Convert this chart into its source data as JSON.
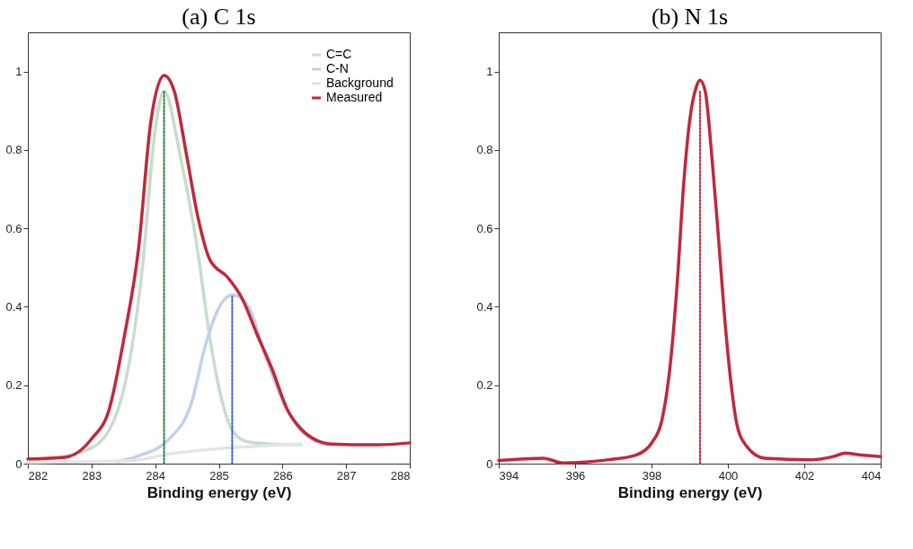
{
  "chart_data": [
    {
      "type": "line",
      "title": "(a) C 1s",
      "xlabel": "Binding energy (eV)",
      "xlim": [
        282,
        288
      ],
      "xticks": [
        282,
        283,
        284,
        285,
        286,
        287,
        288
      ],
      "ylim": [
        0,
        1.1
      ],
      "yticks": [
        0,
        0.2,
        0.4,
        0.6,
        0.8,
        1
      ],
      "grid": false,
      "legend": "top right",
      "series": [
        {
          "name": "C=C",
          "color": "#c8dccb",
          "x": [
            282,
            283,
            283.4,
            283.8,
            284.0,
            284.14,
            284.4,
            284.67,
            284.86,
            285.05,
            285.23,
            285.47,
            285.84,
            286.3
          ],
          "values": [
            0.005,
            0.04,
            0.13,
            0.5,
            0.85,
            0.95,
            0.78,
            0.54,
            0.32,
            0.16,
            0.08,
            0.055,
            0.05,
            0.048
          ]
        },
        {
          "name": "C-N",
          "color": "#c0d0f0",
          "x": [
            283.4,
            283.74,
            284.2,
            284.58,
            284.77,
            284.95,
            285.21,
            285.47,
            285.7,
            285.98,
            286.26,
            286.53
          ],
          "values": [
            0.005,
            0.02,
            0.06,
            0.16,
            0.29,
            0.38,
            0.43,
            0.4,
            0.29,
            0.17,
            0.09,
            0.055
          ]
        },
        {
          "name": "Background",
          "color": "#e2e6e2",
          "x": [
            282,
            283.65,
            284.2,
            285.14,
            286.3
          ],
          "values": [
            0.003,
            0.008,
            0.024,
            0.04,
            0.05
          ]
        },
        {
          "name": "Measured",
          "color": "#c0283a",
          "x": [
            282,
            282.58,
            283,
            283.28,
            283.51,
            283.74,
            283.93,
            284.14,
            284.3,
            284.49,
            284.67,
            284.86,
            285.14,
            285.37,
            285.6,
            285.84,
            286.07,
            286.3,
            286.53,
            286.77,
            287.47,
            288
          ],
          "values": [
            0.012,
            0.016,
            0.063,
            0.14,
            0.32,
            0.55,
            0.87,
            0.99,
            0.95,
            0.79,
            0.63,
            0.52,
            0.475,
            0.42,
            0.33,
            0.24,
            0.14,
            0.087,
            0.06,
            0.05,
            0.048,
            0.053
          ]
        },
        {
          "color": "#2e7d3e",
          "line_style": "dotted",
          "x": [
            284.14,
            284.14
          ],
          "values": [
            0,
            0.95
          ]
        },
        {
          "color": "#2f5fe0",
          "line_style": "dotted",
          "x": [
            285.21,
            285.21
          ],
          "values": [
            0,
            0.43
          ]
        }
      ]
    },
    {
      "type": "line",
      "title": "(b) N 1s",
      "xlabel": "Binding energy (eV)",
      "xlim": [
        394,
        404
      ],
      "xticks": [
        394,
        396,
        398,
        400,
        402,
        404
      ],
      "ylim": [
        0,
        1.1
      ],
      "yticks": [
        0,
        0.2,
        0.4,
        0.6,
        0.8,
        1
      ],
      "grid": false,
      "series": [
        {
          "color": "#c0283a",
          "x": [
            394,
            395.17,
            395.66,
            396.88,
            397.6,
            398.02,
            398.27,
            398.51,
            398.68,
            398.84,
            399.0,
            399.17,
            399.27,
            399.41,
            399.57,
            399.74,
            399.9,
            400.07,
            400.23,
            400.47,
            400.96,
            402.19,
            402.76,
            403.08,
            403.41,
            404
          ],
          "values": [
            0.008,
            0.014,
            0.002,
            0.01,
            0.022,
            0.055,
            0.11,
            0.27,
            0.47,
            0.71,
            0.875,
            0.96,
            0.978,
            0.948,
            0.795,
            0.594,
            0.39,
            0.216,
            0.103,
            0.047,
            0.014,
            0.01,
            0.018,
            0.027,
            0.023,
            0.018
          ]
        },
        {
          "color": "#c0283a",
          "line_style": "dotted",
          "x": [
            399.27,
            399.27
          ],
          "values": [
            0,
            0.95
          ]
        }
      ]
    }
  ]
}
